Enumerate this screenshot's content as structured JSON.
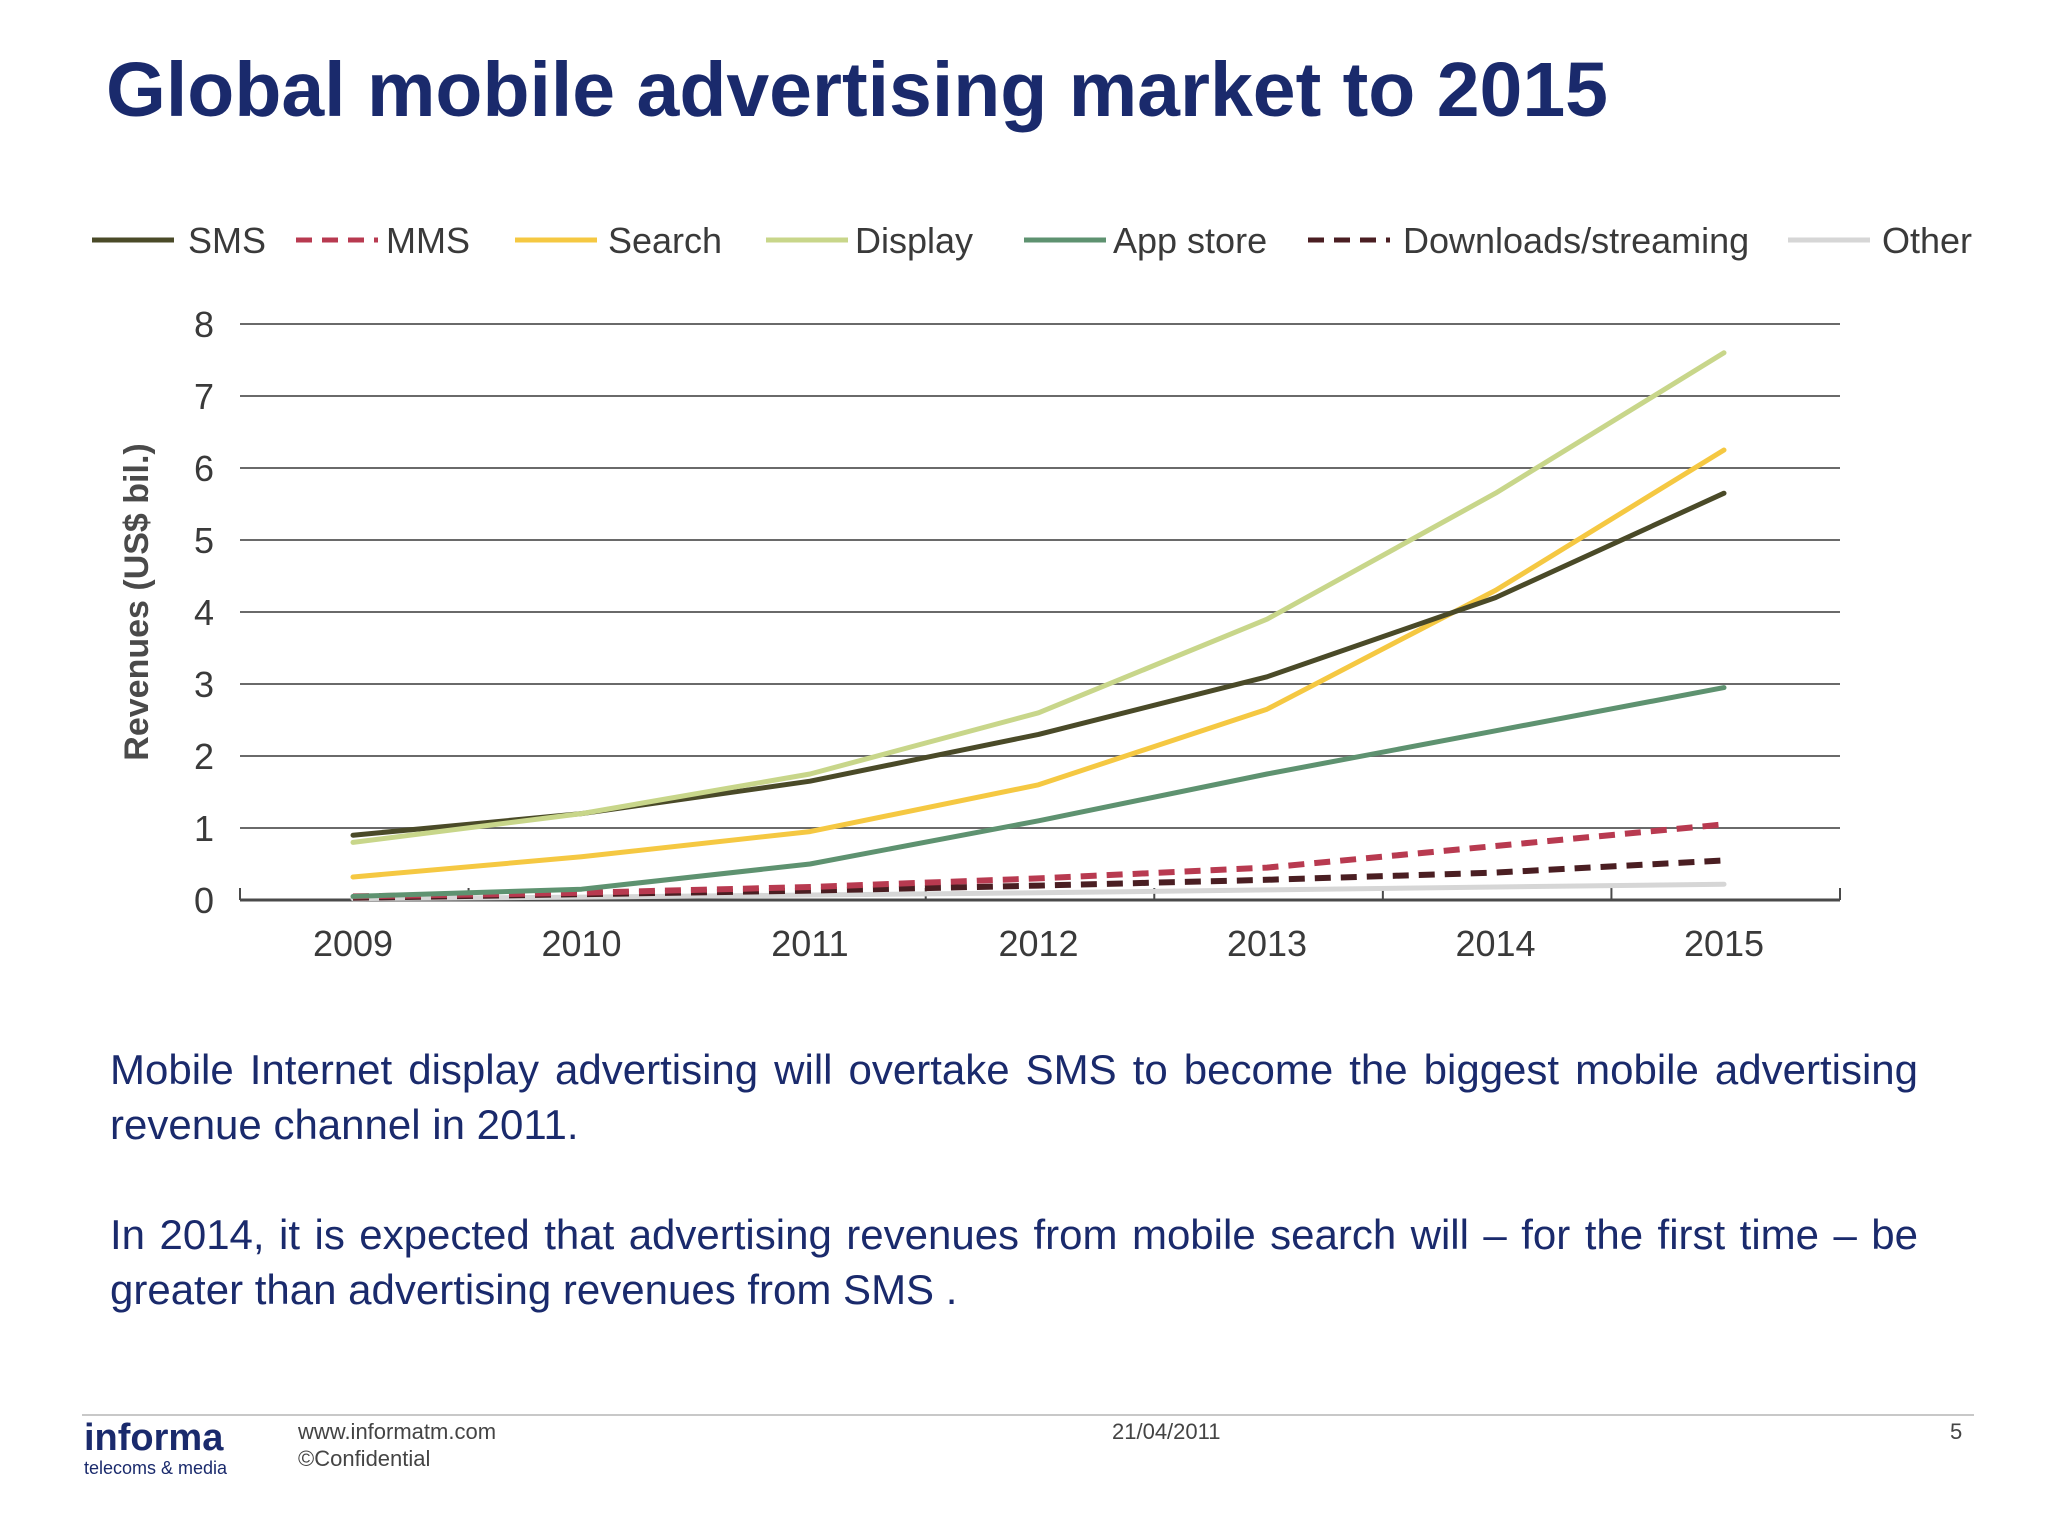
{
  "slide": {
    "title": "Global mobile advertising market to 2015",
    "paragraphs": [
      "Mobile Internet display advertising will overtake SMS to become the biggest mobile advertising revenue channel in 2011.",
      "In 2014, it is expected that advertising revenues from mobile search will – for the first time – be greater than advertising revenues from SMS ."
    ]
  },
  "footer": {
    "logo_word": "informa",
    "logo_sub": "telecoms & media",
    "url": "www.informatm.com",
    "confidential": "©Confidential",
    "date": "21/04/2011",
    "page_number": "5"
  },
  "chart_data": {
    "type": "line",
    "title": "",
    "xlabel": "",
    "ylabel": "Revenues (US$ bil.)",
    "x": [
      "2009",
      "2010",
      "2011",
      "2012",
      "2013",
      "2014",
      "2015"
    ],
    "ylim": [
      0,
      8
    ],
    "yticks": [
      "0",
      "1",
      "2",
      "3",
      "4",
      "5",
      "6",
      "7",
      "8"
    ],
    "grid": true,
    "legend_position": "top",
    "series": [
      {
        "name": "SMS",
        "color": "#4a4a28",
        "dash": "solid",
        "values": [
          0.9,
          1.2,
          1.65,
          2.3,
          3.1,
          4.2,
          5.65
        ]
      },
      {
        "name": "MMS",
        "color": "#b83a50",
        "dash": "dashed",
        "values": [
          0.05,
          0.1,
          0.18,
          0.3,
          0.45,
          0.75,
          1.05
        ]
      },
      {
        "name": "Search",
        "color": "#f5c842",
        "dash": "solid",
        "values": [
          0.32,
          0.6,
          0.95,
          1.6,
          2.65,
          4.3,
          6.25
        ]
      },
      {
        "name": "Display",
        "color": "#c8d68a",
        "dash": "solid",
        "values": [
          0.8,
          1.2,
          1.75,
          2.6,
          3.9,
          5.65,
          7.6
        ]
      },
      {
        "name": "App store",
        "color": "#5e9270",
        "dash": "solid",
        "values": [
          0.05,
          0.15,
          0.5,
          1.1,
          1.75,
          2.35,
          2.95
        ]
      },
      {
        "name": "Downloads/streaming",
        "color": "#4a1e22",
        "dash": "dashed",
        "values": [
          0.03,
          0.08,
          0.13,
          0.2,
          0.28,
          0.38,
          0.55
        ]
      },
      {
        "name": "Other",
        "color": "#d6d6d6",
        "dash": "solid",
        "values": [
          0.02,
          0.04,
          0.07,
          0.1,
          0.14,
          0.18,
          0.22
        ]
      }
    ]
  }
}
